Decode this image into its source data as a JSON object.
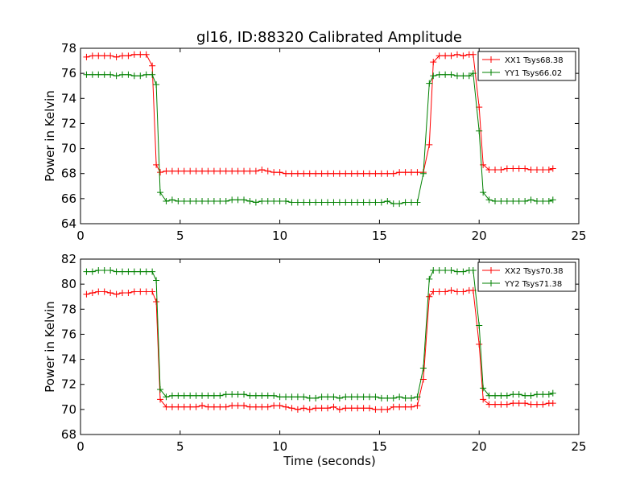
{
  "figure": {
    "title": "gl16, ID:88320 Calibrated Amplitude"
  },
  "chart_data": [
    {
      "type": "line",
      "title": "gl16, ID:88320 Calibrated Amplitude",
      "xlabel": "",
      "ylabel": "Power in Kelvin",
      "xlim": [
        0,
        25
      ],
      "ylim": [
        64,
        78
      ],
      "xticks": [
        "0",
        "5",
        "10",
        "15",
        "20",
        "25"
      ],
      "yticks": [
        "64",
        "66",
        "68",
        "70",
        "72",
        "74",
        "76",
        "78"
      ],
      "grid": false,
      "legend_position": "top-right",
      "marker": "+",
      "x": [
        0.3,
        0.6,
        0.9,
        1.2,
        1.5,
        1.8,
        2.1,
        2.4,
        2.7,
        3.0,
        3.3,
        3.6,
        3.8,
        4.0,
        4.3,
        4.6,
        4.9,
        5.2,
        5.5,
        5.8,
        6.1,
        6.4,
        6.7,
        7.0,
        7.3,
        7.6,
        7.9,
        8.2,
        8.5,
        8.8,
        9.1,
        9.4,
        9.7,
        10.0,
        10.3,
        10.6,
        10.9,
        11.2,
        11.5,
        11.8,
        12.1,
        12.4,
        12.7,
        13.0,
        13.3,
        13.6,
        13.9,
        14.2,
        14.5,
        14.8,
        15.1,
        15.4,
        15.7,
        16.0,
        16.3,
        16.6,
        16.9,
        17.2,
        17.5,
        17.7,
        18.0,
        18.3,
        18.6,
        18.9,
        19.2,
        19.5,
        19.7,
        20.0,
        20.2,
        20.5,
        20.8,
        21.1,
        21.4,
        21.7,
        22.0,
        22.3,
        22.6,
        22.9,
        23.2,
        23.5,
        23.7
      ],
      "series": [
        {
          "name": "XX1 Tsys68.38",
          "color": "#ff0000",
          "values": [
            77.3,
            77.4,
            77.4,
            77.4,
            77.4,
            77.3,
            77.4,
            77.4,
            77.5,
            77.5,
            77.5,
            76.6,
            68.7,
            68.1,
            68.2,
            68.2,
            68.2,
            68.2,
            68.2,
            68.2,
            68.2,
            68.2,
            68.2,
            68.2,
            68.2,
            68.2,
            68.2,
            68.2,
            68.2,
            68.2,
            68.3,
            68.2,
            68.1,
            68.1,
            68.0,
            68.0,
            68.0,
            68.0,
            68.0,
            68.0,
            68.0,
            68.0,
            68.0,
            68.0,
            68.0,
            68.0,
            68.0,
            68.0,
            68.0,
            68.0,
            68.0,
            68.0,
            68.0,
            68.1,
            68.1,
            68.1,
            68.1,
            68.1,
            70.3,
            76.9,
            77.4,
            77.4,
            77.4,
            77.5,
            77.4,
            77.5,
            77.5,
            73.3,
            68.7,
            68.3,
            68.3,
            68.3,
            68.4,
            68.4,
            68.4,
            68.4,
            68.3,
            68.3,
            68.3,
            68.3,
            68.4
          ],
          "style": "solid"
        },
        {
          "name": "YY1 Tsys66.02",
          "color": "#008000",
          "values": [
            75.9,
            75.9,
            75.9,
            75.9,
            75.9,
            75.8,
            75.9,
            75.9,
            75.8,
            75.8,
            75.9,
            75.9,
            75.1,
            66.5,
            65.8,
            65.9,
            65.8,
            65.8,
            65.8,
            65.8,
            65.8,
            65.8,
            65.8,
            65.8,
            65.8,
            65.9,
            65.9,
            65.9,
            65.8,
            65.7,
            65.8,
            65.8,
            65.8,
            65.8,
            65.8,
            65.7,
            65.7,
            65.7,
            65.7,
            65.7,
            65.7,
            65.7,
            65.7,
            65.7,
            65.7,
            65.7,
            65.7,
            65.7,
            65.7,
            65.7,
            65.7,
            65.8,
            65.6,
            65.6,
            65.7,
            65.7,
            65.7,
            68.0,
            75.2,
            75.8,
            75.9,
            75.9,
            75.9,
            75.8,
            75.8,
            75.8,
            76.0,
            71.4,
            66.5,
            65.9,
            65.8,
            65.8,
            65.8,
            65.8,
            65.8,
            65.8,
            65.9,
            65.8,
            65.8,
            65.8,
            65.9
          ],
          "style": "solid"
        }
      ]
    },
    {
      "type": "line",
      "title": "",
      "xlabel": "Time (seconds)",
      "ylabel": "Power in Kelvin",
      "xlim": [
        0,
        25
      ],
      "ylim": [
        68,
        82
      ],
      "xticks": [
        "0",
        "5",
        "10",
        "15",
        "20",
        "25"
      ],
      "yticks": [
        "68",
        "70",
        "72",
        "74",
        "76",
        "78",
        "80",
        "82"
      ],
      "grid": false,
      "legend_position": "top-right",
      "marker": "+",
      "x": [
        0.3,
        0.6,
        0.9,
        1.2,
        1.5,
        1.8,
        2.1,
        2.4,
        2.7,
        3.0,
        3.3,
        3.6,
        3.8,
        4.0,
        4.3,
        4.6,
        4.9,
        5.2,
        5.5,
        5.8,
        6.1,
        6.4,
        6.7,
        7.0,
        7.3,
        7.6,
        7.9,
        8.2,
        8.5,
        8.8,
        9.1,
        9.4,
        9.7,
        10.0,
        10.3,
        10.6,
        10.9,
        11.2,
        11.5,
        11.8,
        12.1,
        12.4,
        12.7,
        13.0,
        13.3,
        13.6,
        13.9,
        14.2,
        14.5,
        14.8,
        15.1,
        15.4,
        15.7,
        16.0,
        16.3,
        16.6,
        16.9,
        17.2,
        17.5,
        17.7,
        18.0,
        18.3,
        18.6,
        18.9,
        19.2,
        19.5,
        19.7,
        20.0,
        20.2,
        20.5,
        20.8,
        21.1,
        21.4,
        21.7,
        22.0,
        22.3,
        22.6,
        22.9,
        23.2,
        23.5,
        23.7
      ],
      "series": [
        {
          "name": "XX2 Tsys70.38",
          "color": "#ff0000",
          "values": [
            79.2,
            79.3,
            79.4,
            79.4,
            79.3,
            79.2,
            79.3,
            79.3,
            79.4,
            79.4,
            79.4,
            79.4,
            78.6,
            70.8,
            70.2,
            70.2,
            70.2,
            70.2,
            70.2,
            70.2,
            70.3,
            70.2,
            70.2,
            70.2,
            70.2,
            70.3,
            70.3,
            70.3,
            70.2,
            70.2,
            70.2,
            70.2,
            70.3,
            70.3,
            70.2,
            70.1,
            70.0,
            70.1,
            70.0,
            70.1,
            70.1,
            70.1,
            70.2,
            70.0,
            70.1,
            70.1,
            70.1,
            70.1,
            70.1,
            70.0,
            70.0,
            70.0,
            70.2,
            70.2,
            70.2,
            70.2,
            70.3,
            72.4,
            79.0,
            79.4,
            79.4,
            79.4,
            79.5,
            79.4,
            79.4,
            79.5,
            79.5,
            75.2,
            70.8,
            70.4,
            70.4,
            70.4,
            70.4,
            70.5,
            70.5,
            70.5,
            70.4,
            70.4,
            70.4,
            70.5,
            70.5
          ],
          "style": "solid"
        },
        {
          "name": "YY2 Tsys71.38",
          "color": "#008000",
          "values": [
            81.0,
            81.0,
            81.1,
            81.1,
            81.1,
            81.0,
            81.0,
            81.0,
            81.0,
            81.0,
            81.0,
            81.0,
            80.3,
            71.6,
            71.0,
            71.1,
            71.1,
            71.1,
            71.1,
            71.1,
            71.1,
            71.1,
            71.1,
            71.1,
            71.2,
            71.2,
            71.2,
            71.2,
            71.1,
            71.1,
            71.1,
            71.1,
            71.1,
            71.0,
            71.0,
            71.0,
            71.0,
            71.0,
            70.9,
            70.9,
            71.0,
            71.0,
            71.0,
            70.9,
            71.0,
            71.0,
            71.0,
            71.0,
            71.0,
            71.0,
            70.9,
            70.9,
            70.9,
            71.0,
            70.9,
            70.9,
            71.0,
            73.3,
            80.4,
            81.1,
            81.1,
            81.1,
            81.1,
            81.0,
            81.0,
            81.1,
            81.1,
            76.7,
            71.7,
            71.1,
            71.1,
            71.1,
            71.1,
            71.2,
            71.2,
            71.1,
            71.1,
            71.2,
            71.2,
            71.2,
            71.3
          ],
          "style": "solid"
        }
      ]
    }
  ]
}
